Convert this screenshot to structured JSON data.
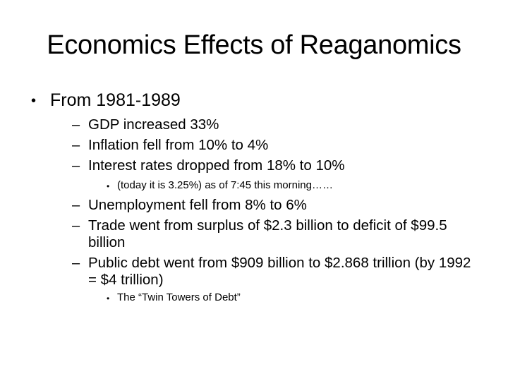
{
  "slide": {
    "title": "Economics Effects of Reaganomics",
    "bullets": [
      {
        "marker": "•",
        "text": "From 1981-1989"
      },
      {
        "marker": "–",
        "text": "GDP increased 33%"
      },
      {
        "marker": "–",
        "text": "Inflation fell from 10% to 4%"
      },
      {
        "marker": "–",
        "text": "Interest rates dropped from 18% to 10%"
      },
      {
        "marker": "•",
        "text": "(today it is 3.25%) as of 7:45 this morning……"
      },
      {
        "marker": "–",
        "text": "Unemployment fell from 8% to 6%"
      },
      {
        "marker": "–",
        "text": "Trade went from surplus of $2.3 billion to deficit of $99.5 billion"
      },
      {
        "marker": "–",
        "text": "Public debt went from $909 billion to $2.868 trillion (by 1992 = $4 trillion)"
      },
      {
        "marker": "•",
        "text": "The “Twin Towers of Debt”"
      }
    ]
  }
}
